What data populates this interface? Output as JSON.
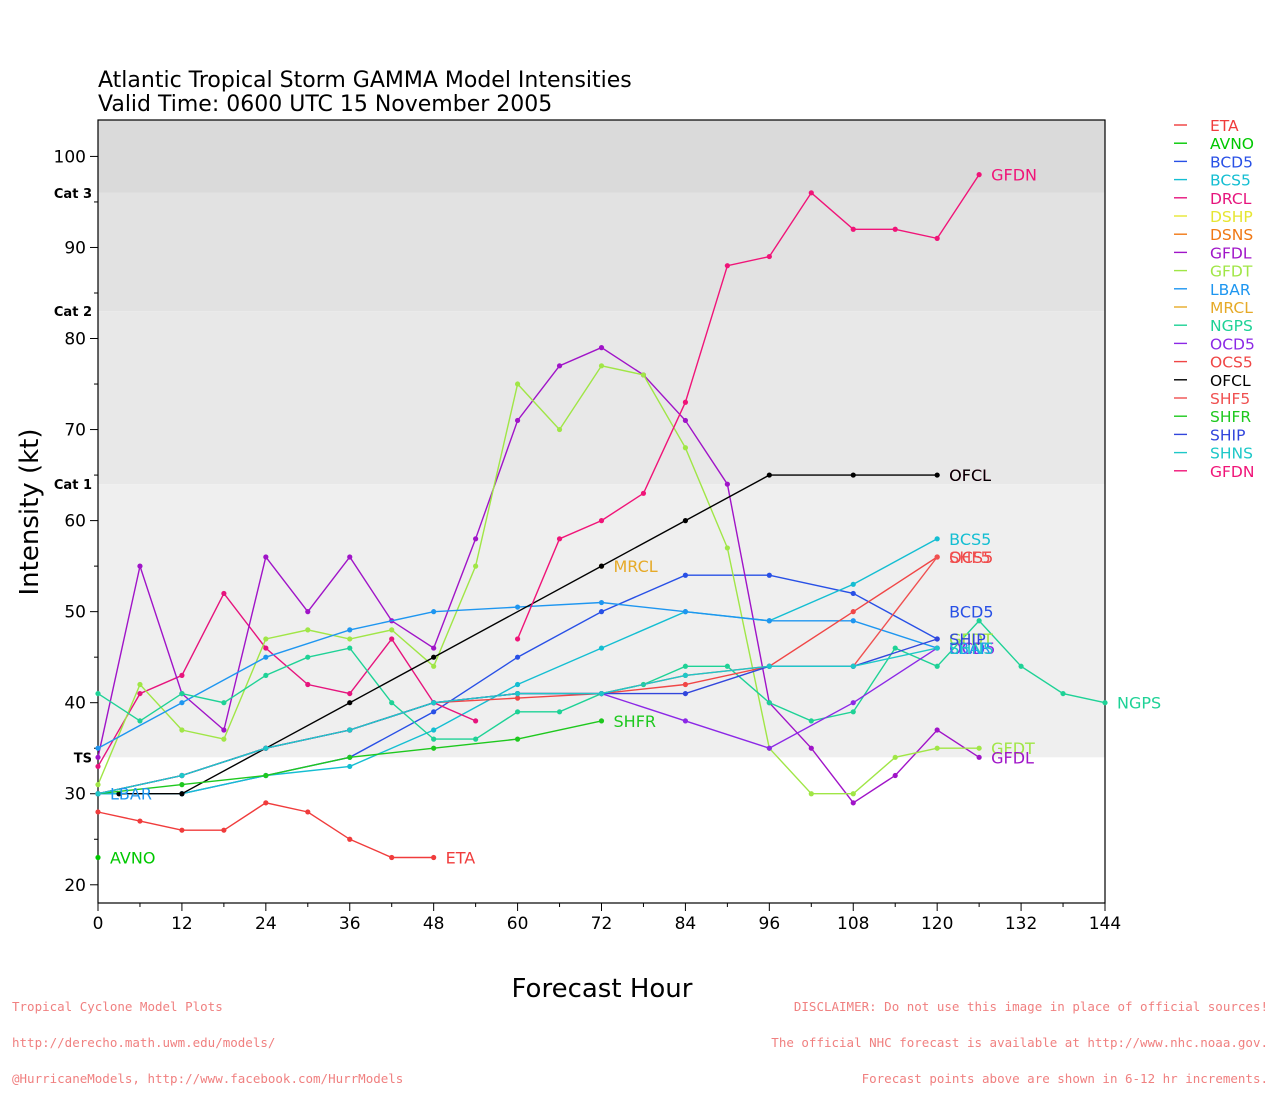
{
  "chart_data": {
    "type": "line",
    "title": "Atlantic Tropical Storm GAMMA Model Intensities",
    "subtitle": "Valid Time: 0600 UTC 15 November 2005",
    "xlabel": "Forecast Hour",
    "ylabel": "Intensity (kt)",
    "xlim": [
      0,
      144
    ],
    "ylim": [
      18,
      104
    ],
    "x_ticks": [
      0,
      12,
      24,
      36,
      48,
      60,
      72,
      84,
      96,
      108,
      120,
      132,
      144
    ],
    "y_ticks": [
      20,
      30,
      40,
      50,
      60,
      70,
      80,
      90,
      100
    ],
    "grid": false,
    "legend_position": "right",
    "bands": [
      {
        "from": 34,
        "to": 64,
        "color": "#efefef"
      },
      {
        "from": 64,
        "to": 83,
        "color": "#e8e8e8"
      },
      {
        "from": 83,
        "to": 96,
        "color": "#e2e2e2"
      },
      {
        "from": 96,
        "to": 104,
        "color": "#dadada"
      }
    ],
    "category_labels": [
      {
        "label": "TS",
        "value": 34
      },
      {
        "label": "Cat 1",
        "value": 64
      },
      {
        "label": "Cat 2",
        "value": 83
      },
      {
        "label": "Cat 3",
        "value": 96
      }
    ],
    "series": [
      {
        "name": "ETA",
        "color": "#f03c3c",
        "x": [
          0,
          6,
          12,
          18,
          24,
          30,
          36,
          42,
          48
        ],
        "values": [
          28,
          27,
          26,
          26,
          29,
          28,
          25,
          23,
          23
        ]
      },
      {
        "name": "AVNO",
        "color": "#00c800",
        "x": [
          0
        ],
        "values": [
          23
        ]
      },
      {
        "name": "BCD5",
        "color": "#2850e6",
        "x": [
          0,
          12,
          24,
          36,
          48,
          60,
          72,
          84,
          96,
          108,
          120
        ],
        "values": [
          30,
          30,
          32,
          34,
          39,
          45,
          50,
          54,
          54,
          52,
          47
        ]
      },
      {
        "name": "BCS5",
        "color": "#14bed2",
        "x": [
          0,
          12,
          24,
          36,
          48,
          60,
          72,
          84,
          96,
          108,
          120
        ],
        "values": [
          30,
          30,
          32,
          33,
          37,
          42,
          46,
          50,
          49,
          53,
          58
        ]
      },
      {
        "name": "DRCL",
        "color": "#e6147d",
        "x": [
          0,
          6,
          12,
          18,
          24,
          30,
          36,
          42,
          48,
          54
        ],
        "values": [
          33,
          41,
          43,
          52,
          46,
          42,
          41,
          47,
          40,
          38
        ]
      },
      {
        "name": "DSHP",
        "color": "#e6e632",
        "x": [],
        "values": []
      },
      {
        "name": "DSNS",
        "color": "#f07814",
        "x": [],
        "values": []
      },
      {
        "name": "GFDL",
        "color": "#a014c8",
        "x": [
          0,
          6,
          12,
          18,
          24,
          30,
          36,
          42,
          48,
          54,
          60,
          66,
          72,
          78,
          84,
          90,
          96,
          102,
          108,
          114,
          120,
          126
        ],
        "values": [
          34,
          55,
          41,
          37,
          56,
          50,
          56,
          49,
          46,
          58,
          71,
          77,
          79,
          76,
          71,
          64,
          40,
          35,
          29,
          32,
          37,
          34
        ]
      },
      {
        "name": "GFDT",
        "color": "#a0e646",
        "x": [
          0,
          6,
          12,
          18,
          24,
          30,
          36,
          42,
          48,
          54,
          60,
          66,
          72,
          78,
          84,
          90,
          96,
          102,
          108,
          114,
          120,
          126
        ],
        "values": [
          31,
          42,
          37,
          36,
          47,
          48,
          47,
          48,
          44,
          55,
          75,
          70,
          77,
          76,
          68,
          57,
          35,
          30,
          30,
          34,
          35,
          35
        ]
      },
      {
        "name": "LBAR",
        "color": "#1e96f0",
        "x": [
          0,
          12,
          24,
          36,
          48,
          60,
          72,
          84,
          96,
          108,
          120
        ],
        "values": [
          35,
          40,
          45,
          48,
          50,
          50.5,
          51,
          50,
          49,
          49,
          46
        ]
      },
      {
        "name": "MRCL",
        "color": "#e6aa28",
        "x": [
          72
        ],
        "values": [
          55
        ]
      },
      {
        "name": "NGPS",
        "color": "#1ed296",
        "x": [
          0,
          6,
          12,
          18,
          24,
          30,
          36,
          42,
          48,
          54,
          60,
          66,
          72,
          78,
          84,
          90,
          96,
          102,
          108,
          114,
          120,
          126,
          132,
          138,
          144
        ],
        "values": [
          41,
          38,
          41,
          40,
          43,
          45,
          46,
          40,
          36,
          36,
          39,
          39,
          41,
          42,
          44,
          44,
          40,
          38,
          39,
          46,
          44,
          49,
          44,
          41,
          40
        ]
      },
      {
        "name": "OCD5",
        "color": "#8c28e6",
        "x": [
          0,
          12,
          24,
          36,
          48,
          60,
          72,
          84,
          96,
          108,
          120
        ],
        "values": [
          30,
          32,
          35,
          37,
          40,
          41,
          41,
          38,
          35,
          40,
          46
        ]
      },
      {
        "name": "OCS5",
        "color": "#f04646",
        "x": [
          0,
          12,
          24,
          36,
          48,
          60,
          72,
          84,
          96,
          108,
          120
        ],
        "values": [
          30,
          32,
          35,
          37,
          40,
          40.5,
          41,
          42,
          44,
          50,
          56
        ]
      },
      {
        "name": "OFCL",
        "color": "#000000",
        "x": [
          3,
          12,
          36,
          48,
          72,
          84,
          96,
          108,
          120
        ],
        "values": [
          30,
          30,
          40,
          45,
          55,
          60,
          65,
          65,
          65
        ]
      },
      {
        "name": "SHF5",
        "color": "#f05050",
        "x": [
          0,
          12,
          24,
          36,
          48,
          60,
          72,
          84,
          96,
          108,
          120
        ],
        "values": [
          30,
          32,
          35,
          37,
          40,
          41,
          41,
          43,
          44,
          44,
          56
        ]
      },
      {
        "name": "SHFR",
        "color": "#1ec81e",
        "x": [
          0,
          12,
          24,
          36,
          48,
          60,
          72
        ],
        "values": [
          30,
          31,
          32,
          34,
          35,
          36,
          38
        ]
      },
      {
        "name": "SHIP",
        "color": "#3246dc",
        "x": [
          0,
          12,
          24,
          36,
          48,
          60,
          72,
          84,
          96,
          108,
          120
        ],
        "values": [
          30,
          32,
          35,
          37,
          40,
          41,
          41,
          41,
          44,
          44,
          47
        ]
      },
      {
        "name": "SHNS",
        "color": "#1ec8c8",
        "x": [
          0,
          12,
          24,
          36,
          48,
          60,
          72,
          84,
          96,
          108,
          120
        ],
        "values": [
          30,
          32,
          35,
          37,
          40,
          41,
          41,
          43,
          44,
          44,
          46
        ]
      },
      {
        "name": "GFDN",
        "color": "#f01478",
        "x": [
          60,
          66,
          72,
          78,
          84,
          90,
          96,
          102,
          108,
          114,
          120,
          126
        ],
        "values": [
          47,
          58,
          60,
          63,
          73,
          88,
          89,
          96,
          92,
          92,
          91,
          98
        ]
      }
    ],
    "end_labels": [
      {
        "text": "GFDN",
        "x": 126,
        "y": 98,
        "color": "#f01478"
      },
      {
        "text": "OFCL",
        "x": 120,
        "y": 65,
        "color": "#f01478"
      },
      {
        "text": "OFCL",
        "x": 120,
        "y": 65,
        "color": "#000000"
      },
      {
        "text": "MRCL",
        "x": 72,
        "y": 55,
        "color": "#e6aa28"
      },
      {
        "text": "BCS5",
        "x": 120,
        "y": 58,
        "color": "#14bed2"
      },
      {
        "text": "OCS5",
        "x": 120,
        "y": 56,
        "color": "#f04646"
      },
      {
        "text": "SHF5",
        "x": 120,
        "y": 56,
        "color": "#f05050"
      },
      {
        "text": "BCD5",
        "x": 120,
        "y": 50,
        "color": "#2850e6"
      },
      {
        "text": "GFDT",
        "x": 120,
        "y": 47,
        "color": "#a0e646"
      },
      {
        "text": "OCD5",
        "x": 120,
        "y": 46,
        "color": "#8c28e6"
      },
      {
        "text": "LBAR",
        "x": 120,
        "y": 46,
        "color": "#1e96f0"
      },
      {
        "text": "SHNS",
        "x": 120,
        "y": 46,
        "color": "#1ec8c8"
      },
      {
        "text": "SHIP",
        "x": 120,
        "y": 47,
        "color": "#3246dc"
      },
      {
        "text": "NGPS",
        "x": 144,
        "y": 40,
        "color": "#1ed296"
      },
      {
        "text": "SHFR",
        "x": 72,
        "y": 38,
        "color": "#1ec81e"
      },
      {
        "text": "GFDT",
        "x": 126,
        "y": 35,
        "color": "#a0e646"
      },
      {
        "text": "GFDL",
        "x": 126,
        "y": 34,
        "color": "#a014c8"
      },
      {
        "text": "LBAR",
        "x": 0,
        "y": 30,
        "color": "#1e96f0"
      },
      {
        "text": "AVNO",
        "x": 0,
        "y": 23,
        "color": "#00c800"
      },
      {
        "text": "ETA",
        "x": 48,
        "y": 23,
        "color": "#f03c3c"
      }
    ],
    "legend": [
      {
        "name": "ETA",
        "color": "#f03c3c"
      },
      {
        "name": "AVNO",
        "color": "#00c800"
      },
      {
        "name": "BCD5",
        "color": "#2850e6"
      },
      {
        "name": "BCS5",
        "color": "#14bed2"
      },
      {
        "name": "DRCL",
        "color": "#e6147d"
      },
      {
        "name": "DSHP",
        "color": "#e6e632"
      },
      {
        "name": "DSNS",
        "color": "#f07814"
      },
      {
        "name": "GFDL",
        "color": "#a014c8"
      },
      {
        "name": "GFDT",
        "color": "#a0e646"
      },
      {
        "name": "LBAR",
        "color": "#1e96f0"
      },
      {
        "name": "MRCL",
        "color": "#e6aa28"
      },
      {
        "name": "NGPS",
        "color": "#1ed296"
      },
      {
        "name": "OCD5",
        "color": "#8c28e6"
      },
      {
        "name": "OCS5",
        "color": "#f04646"
      },
      {
        "name": "OFCL",
        "color": "#000000"
      },
      {
        "name": "SHF5",
        "color": "#f05050"
      },
      {
        "name": "SHFR",
        "color": "#1ec81e"
      },
      {
        "name": "SHIP",
        "color": "#3246dc"
      },
      {
        "name": "SHNS",
        "color": "#1ec8c8"
      },
      {
        "name": "GFDN",
        "color": "#f01478"
      }
    ]
  },
  "footer": {
    "left_lines": [
      "Tropical Cyclone Model Plots",
      "http://derecho.math.uwm.edu/models/",
      "@HurricaneModels, http://www.facebook.com/HurrModels"
    ],
    "right_lines": [
      "DISCLAIMER: Do not use this image in place of official sources!",
      "The official NHC forecast is available at http://www.nhc.noaa.gov.",
      "Forecast points above are shown in 6-12 hr increments."
    ],
    "footer_color": "#f08080"
  }
}
